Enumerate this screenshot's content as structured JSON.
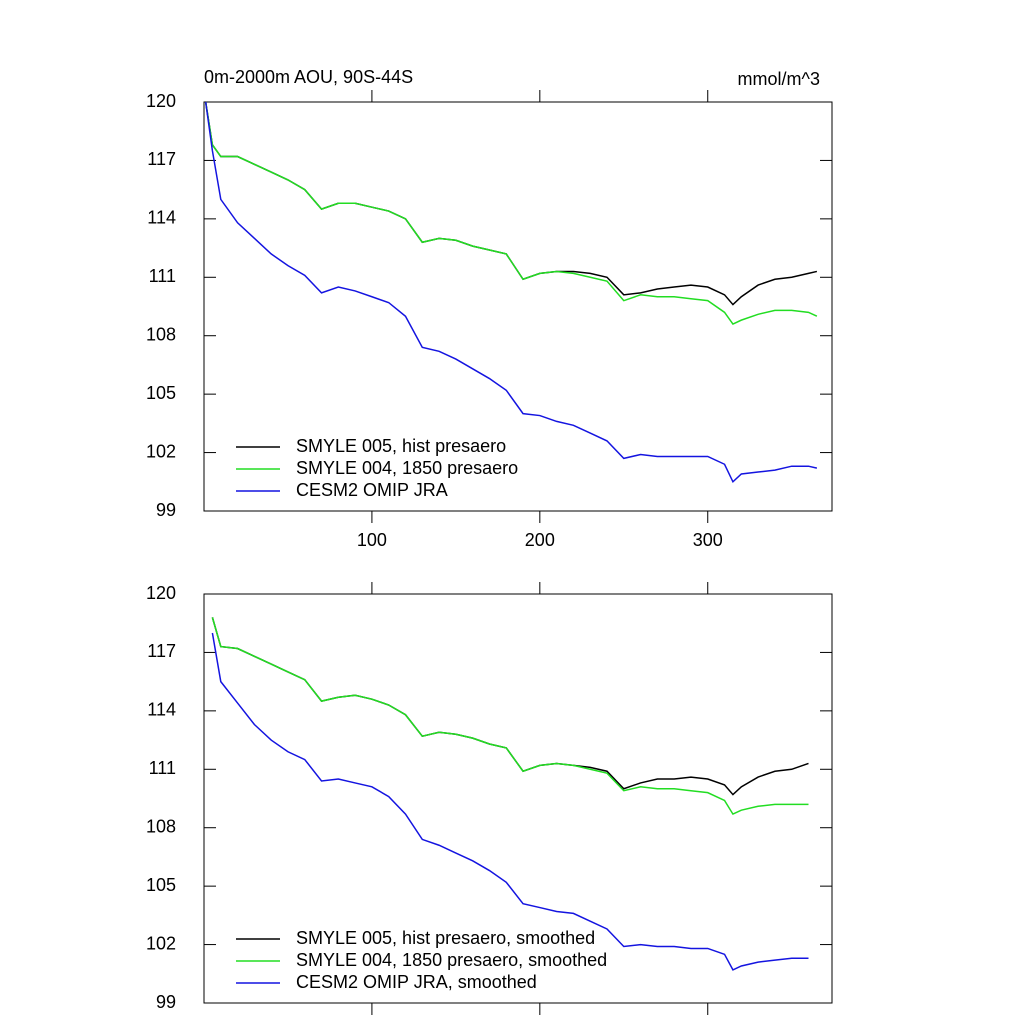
{
  "chart_data": [
    {
      "type": "line",
      "title": "0m-2000m AOU, 90S-44S",
      "units_label": "mmol/m^3",
      "x": [
        1,
        5,
        10,
        20,
        30,
        40,
        50,
        60,
        70,
        80,
        90,
        100,
        110,
        120,
        130,
        140,
        150,
        160,
        170,
        180,
        190,
        200,
        210,
        220,
        230,
        240,
        250,
        260,
        270,
        280,
        290,
        300,
        310,
        315,
        320,
        330,
        340,
        350,
        360,
        365
      ],
      "series": [
        {
          "name": "SMYLE 005, hist presaero",
          "color": "#000000",
          "values": [
            120,
            117.8,
            117.2,
            117.2,
            116.8,
            116.4,
            116.0,
            115.5,
            114.5,
            114.8,
            114.8,
            114.6,
            114.4,
            114.0,
            112.8,
            113.0,
            112.9,
            112.6,
            112.4,
            112.2,
            110.9,
            111.2,
            111.3,
            111.3,
            111.2,
            111.0,
            110.1,
            110.2,
            110.4,
            110.5,
            110.6,
            110.5,
            110.1,
            109.6,
            110.0,
            110.6,
            110.9,
            111.0,
            111.2,
            111.3
          ]
        },
        {
          "name": "SMYLE 004, 1850 presaero",
          "color": "#22dd22",
          "values": [
            120,
            117.8,
            117.2,
            117.2,
            116.8,
            116.4,
            116.0,
            115.5,
            114.5,
            114.8,
            114.8,
            114.6,
            114.4,
            114.0,
            112.8,
            113.0,
            112.9,
            112.6,
            112.4,
            112.2,
            110.9,
            111.2,
            111.3,
            111.2,
            111.0,
            110.8,
            109.8,
            110.1,
            110.0,
            110.0,
            109.9,
            109.8,
            109.2,
            108.6,
            108.8,
            109.1,
            109.3,
            109.3,
            109.2,
            109.0
          ]
        },
        {
          "name": "CESM2 OMIP JRA",
          "color": "#1414e0",
          "values": [
            120,
            117.5,
            115.0,
            113.8,
            113.0,
            112.2,
            111.6,
            111.1,
            110.2,
            110.5,
            110.3,
            110.0,
            109.7,
            109.0,
            107.4,
            107.2,
            106.8,
            106.3,
            105.8,
            105.2,
            104.0,
            103.9,
            103.6,
            103.4,
            103.0,
            102.6,
            101.7,
            101.9,
            101.8,
            101.8,
            101.8,
            101.8,
            101.4,
            100.5,
            100.9,
            101.0,
            101.1,
            101.3,
            101.3,
            101.2
          ]
        }
      ],
      "xlim": [
        0,
        374
      ],
      "xticks": [
        100,
        200,
        300
      ],
      "ylim": [
        99,
        120
      ],
      "yticks": [
        99,
        102,
        105,
        108,
        111,
        114,
        117,
        120
      ]
    },
    {
      "type": "line",
      "x": [
        5,
        10,
        20,
        30,
        40,
        50,
        60,
        70,
        80,
        90,
        100,
        110,
        120,
        130,
        140,
        150,
        160,
        170,
        180,
        190,
        200,
        210,
        220,
        230,
        240,
        250,
        260,
        270,
        280,
        290,
        300,
        310,
        315,
        320,
        330,
        340,
        350,
        360
      ],
      "series": [
        {
          "name": "SMYLE 005, hist presaero, smoothed",
          "color": "#000000",
          "values": [
            118.8,
            117.3,
            117.2,
            116.8,
            116.4,
            116.0,
            115.6,
            114.5,
            114.7,
            114.8,
            114.6,
            114.3,
            113.8,
            112.7,
            112.9,
            112.8,
            112.6,
            112.3,
            112.1,
            110.9,
            111.2,
            111.3,
            111.2,
            111.1,
            110.9,
            110.0,
            110.3,
            110.5,
            110.5,
            110.6,
            110.5,
            110.2,
            109.7,
            110.1,
            110.6,
            110.9,
            111.0,
            111.3
          ]
        },
        {
          "name": "SMYLE 004, 1850 presaero, smoothed",
          "color": "#22dd22",
          "values": [
            118.8,
            117.3,
            117.2,
            116.8,
            116.4,
            116.0,
            115.6,
            114.5,
            114.7,
            114.8,
            114.6,
            114.3,
            113.8,
            112.7,
            112.9,
            112.8,
            112.6,
            112.3,
            112.1,
            110.9,
            111.2,
            111.3,
            111.2,
            111.0,
            110.8,
            109.9,
            110.1,
            110.0,
            110.0,
            109.9,
            109.8,
            109.4,
            108.7,
            108.9,
            109.1,
            109.2,
            109.2,
            109.2
          ]
        },
        {
          "name": "CESM2 OMIP JRA, smoothed",
          "color": "#1414e0",
          "values": [
            118.0,
            115.5,
            114.4,
            113.3,
            112.5,
            111.9,
            111.5,
            110.4,
            110.5,
            110.3,
            110.1,
            109.6,
            108.7,
            107.4,
            107.1,
            106.7,
            106.3,
            105.8,
            105.2,
            104.1,
            103.9,
            103.7,
            103.6,
            103.2,
            102.8,
            101.9,
            102.0,
            101.9,
            101.9,
            101.8,
            101.8,
            101.5,
            100.7,
            100.9,
            101.1,
            101.2,
            101.3,
            101.3
          ]
        }
      ],
      "xlim": [
        0,
        374
      ],
      "ylim": [
        99,
        120
      ],
      "yticks": [
        99,
        102,
        105,
        108,
        111,
        114,
        117,
        120
      ]
    }
  ]
}
